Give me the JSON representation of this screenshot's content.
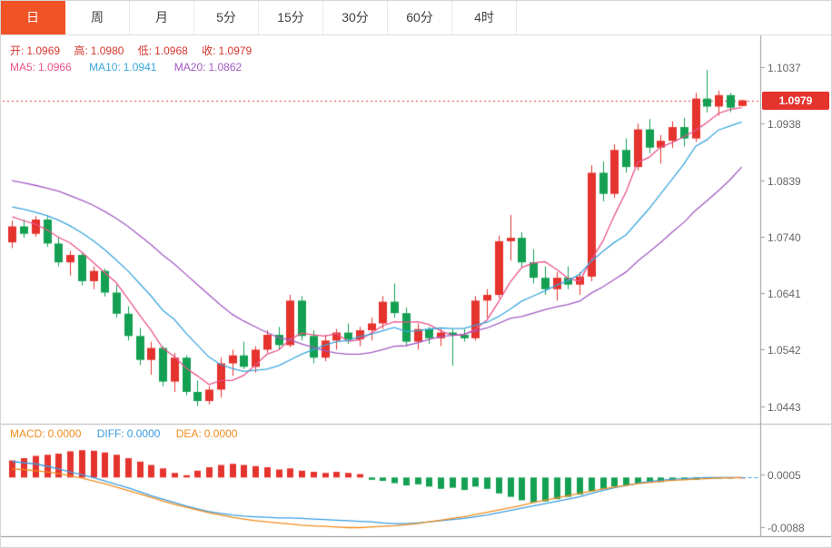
{
  "tabs": [
    {
      "label": "日",
      "active": true
    },
    {
      "label": "周",
      "active": false
    },
    {
      "label": "月",
      "active": false
    },
    {
      "label": "5分",
      "active": false
    },
    {
      "label": "15分",
      "active": false
    },
    {
      "label": "30分",
      "active": false
    },
    {
      "label": "60分",
      "active": false
    },
    {
      "label": "4时",
      "active": false
    }
  ],
  "ohlc_readout": {
    "open_label": "开:",
    "open": "1.0969",
    "high_label": "高:",
    "high": "1.0980",
    "low_label": "低:",
    "low": "1.0968",
    "close_label": "收:",
    "close": "1.0979"
  },
  "ma_readout": {
    "ma5_label": "MA5:",
    "ma5": "1.0966",
    "ma10_label": "MA10:",
    "ma10": "1.0941",
    "ma20_label": "MA20:",
    "ma20": "1.0862"
  },
  "macd_readout": {
    "macd_label": "MACD:",
    "macd": "0.0000",
    "diff_label": "DIFF:",
    "diff": "0.0000",
    "dea_label": "DEA:",
    "dea": "0.0000"
  },
  "colors": {
    "up_red": "#e5332e",
    "down_green": "#14a053",
    "ma5_pink": "#e9538b",
    "ma10_cyan": "#3ba6dd",
    "ma20_purple": "#a35ac2",
    "diff_blue": "#3a9de0",
    "dea_orange": "#f08c1e",
    "active_tab_orange": "#f05326",
    "price_tag_red": "#e5332e",
    "axis_text_gray": "#666666"
  },
  "chart_data": [
    {
      "type": "candlestick",
      "grid": false,
      "ylim": [
        1.0425,
        1.108
      ],
      "y_ticks": [
        "1.1037",
        "1.0938",
        "1.0839",
        "1.0740",
        "1.0641",
        "1.0542",
        "1.0443"
      ],
      "last_price": 1.0979,
      "last_price_label": "1.0979",
      "up_color": "#e5332e",
      "down_color": "#14a053",
      "series": [
        {
          "name": "candles",
          "type": "candlestick",
          "ohlc": [
            [
              1.073,
              1.0768,
              1.072,
              1.0758
            ],
            [
              1.0758,
              1.077,
              1.0738,
              1.0745
            ],
            [
              1.0745,
              1.0776,
              1.074,
              1.077
            ],
            [
              1.077,
              1.0776,
              1.0722,
              1.0728
            ],
            [
              1.0728,
              1.0738,
              1.0688,
              1.0695
            ],
            [
              1.0695,
              1.0715,
              1.0672,
              1.0708
            ],
            [
              1.0708,
              1.0712,
              1.0655,
              1.0662
            ],
            [
              1.0662,
              1.0688,
              1.0648,
              1.068
            ],
            [
              1.068,
              1.0684,
              1.0635,
              1.0642
            ],
            [
              1.0642,
              1.0655,
              1.0598,
              1.0605
            ],
            [
              1.0605,
              1.0618,
              1.0558,
              1.0566
            ],
            [
              1.0566,
              1.058,
              1.0515,
              1.0524
            ],
            [
              1.0524,
              1.0556,
              1.0498,
              1.0545
            ],
            [
              1.0545,
              1.0548,
              1.0478,
              1.0486
            ],
            [
              1.0486,
              1.0536,
              1.0468,
              1.0528
            ],
            [
              1.0528,
              1.0532,
              1.0462,
              1.0468
            ],
            [
              1.0468,
              1.0488,
              1.0443,
              1.0452
            ],
            [
              1.0452,
              1.0478,
              1.0446,
              1.0472
            ],
            [
              1.0472,
              1.0528,
              1.0458,
              1.0518
            ],
            [
              1.0518,
              1.0542,
              1.0496,
              1.0532
            ],
            [
              1.0532,
              1.0556,
              1.0508,
              1.0512
            ],
            [
              1.0512,
              1.0548,
              1.0502,
              1.0542
            ],
            [
              1.0542,
              1.0576,
              1.0536,
              1.0568
            ],
            [
              1.0568,
              1.0582,
              1.0542,
              1.055
            ],
            [
              1.055,
              1.0638,
              1.0546,
              1.0628
            ],
            [
              1.0628,
              1.0636,
              1.0558,
              1.0566
            ],
            [
              1.0566,
              1.0576,
              1.0518,
              1.0528
            ],
            [
              1.0528,
              1.0568,
              1.0522,
              1.0558
            ],
            [
              1.0558,
              1.0578,
              1.0542,
              1.0572
            ],
            [
              1.0572,
              1.0588,
              1.0552,
              1.056
            ],
            [
              1.056,
              1.0582,
              1.0548,
              1.0576
            ],
            [
              1.0576,
              1.0598,
              1.0558,
              1.0588
            ],
            [
              1.0588,
              1.0636,
              1.0578,
              1.0626
            ],
            [
              1.0626,
              1.0658,
              1.0598,
              1.0606
            ],
            [
              1.0606,
              1.0616,
              1.0548,
              1.0556
            ],
            [
              1.0556,
              1.0588,
              1.0542,
              1.0578
            ],
            [
              1.0578,
              1.0582,
              1.0552,
              1.0562
            ],
            [
              1.0562,
              1.0578,
              1.0548,
              1.0572
            ],
            [
              1.0572,
              1.0578,
              1.0514,
              1.0568
            ],
            [
              1.0568,
              1.0578,
              1.0556,
              1.0562
            ],
            [
              1.0562,
              1.0636,
              1.0558,
              1.0628
            ],
            [
              1.0628,
              1.0648,
              1.0598,
              1.0638
            ],
            [
              1.0638,
              1.0742,
              1.0632,
              1.0732
            ],
            [
              1.0732,
              1.0778,
              1.0698,
              1.0738
            ],
            [
              1.0738,
              1.0748,
              1.0686,
              1.0695
            ],
            [
              1.0695,
              1.0718,
              1.0658,
              1.0668
            ],
            [
              1.0668,
              1.0688,
              1.0638,
              1.0648
            ],
            [
              1.0648,
              1.0678,
              1.0628,
              1.0668
            ],
            [
              1.0668,
              1.0688,
              1.0648,
              1.0656
            ],
            [
              1.0656,
              1.0678,
              1.0638,
              1.067
            ],
            [
              1.067,
              1.0865,
              1.0662,
              1.0852
            ],
            [
              1.0852,
              1.0872,
              1.0802,
              1.0815
            ],
            [
              1.0815,
              1.0902,
              1.0808,
              1.0892
            ],
            [
              1.0892,
              1.0912,
              1.0852,
              1.0862
            ],
            [
              1.0862,
              1.0938,
              1.0856,
              1.0928
            ],
            [
              1.0928,
              1.0946,
              1.0886,
              1.0896
            ],
            [
              1.0896,
              1.0918,
              1.0868,
              1.0908
            ],
            [
              1.0908,
              1.0942,
              1.0895,
              1.0932
            ],
            [
              1.0932,
              1.0948,
              1.0898,
              1.0912
            ],
            [
              1.0912,
              1.0992,
              1.0906,
              1.0982
            ],
            [
              1.0982,
              1.1032,
              1.0958,
              1.0968
            ],
            [
              1.0968,
              1.0996,
              1.0952,
              1.0988
            ],
            [
              1.0988,
              1.0992,
              1.0958,
              1.0966
            ],
            [
              1.0969,
              1.098,
              1.0968,
              1.0979
            ]
          ]
        },
        {
          "name": "MA5",
          "type": "line",
          "color": "#e9538b",
          "values": [
            1.0775,
            1.0768,
            1.0762,
            1.0752,
            1.0739,
            1.0729,
            1.0713,
            1.0695,
            1.0677,
            1.0659,
            1.0631,
            1.0603,
            1.0576,
            1.0545,
            1.053,
            1.051,
            1.0496,
            1.0481,
            1.0488,
            1.0488,
            1.0497,
            1.0515,
            1.0534,
            1.0541,
            1.056,
            1.0571,
            1.0568,
            1.0566,
            1.057,
            1.0557,
            1.0559,
            1.0571,
            1.0584,
            1.0591,
            1.059,
            1.0591,
            1.0586,
            1.0575,
            1.0567,
            1.0568,
            1.0578,
            1.0594,
            1.0626,
            1.066,
            1.0686,
            1.0694,
            1.0696,
            1.0683,
            1.0667,
            1.0662,
            1.0699,
            1.0732,
            1.0777,
            1.0818,
            1.087,
            1.0879,
            1.0897,
            1.0905,
            1.0915,
            1.0926,
            1.094,
            1.0956,
            1.0963,
            1.0966
          ]
        },
        {
          "name": "MA10",
          "type": "line",
          "color": "#3ba6dd",
          "values": [
            1.0792,
            1.0788,
            1.0783,
            1.0777,
            1.0769,
            1.0759,
            1.0747,
            1.0733,
            1.0717,
            1.0699,
            1.068,
            1.0658,
            1.0636,
            1.0611,
            1.0595,
            1.0571,
            1.055,
            1.0529,
            1.0516,
            1.0509,
            1.0504,
            1.0506,
            1.0508,
            1.0514,
            1.0524,
            1.0534,
            1.0542,
            1.055,
            1.0556,
            1.0558,
            1.0565,
            1.0569,
            1.0575,
            1.0581,
            1.0574,
            1.0575,
            1.0578,
            1.058,
            1.0579,
            1.0579,
            1.0585,
            1.059,
            1.06,
            1.0613,
            1.0627,
            1.0636,
            1.0645,
            1.0655,
            1.0663,
            1.0674,
            1.0697,
            1.0714,
            1.073,
            1.0743,
            1.0766,
            1.0789,
            1.0815,
            1.0841,
            1.0867,
            1.0898,
            1.091,
            1.0927,
            1.0934,
            1.0941
          ]
        },
        {
          "name": "MA20",
          "type": "line",
          "color": "#a35ac2",
          "values": [
            1.0838,
            1.0834,
            1.083,
            1.0825,
            1.082,
            1.0812,
            1.0804,
            1.0795,
            1.0784,
            1.0772,
            1.0758,
            1.0742,
            1.0726,
            1.0708,
            1.0692,
            1.0674,
            1.0656,
            1.0638,
            1.062,
            1.0604,
            1.0592,
            1.0582,
            1.0572,
            1.0563,
            1.0559,
            1.0552,
            1.0546,
            1.054,
            1.0536,
            1.0534,
            1.0534,
            1.0537,
            1.0542,
            1.0548,
            1.0549,
            1.0554,
            1.056,
            1.0565,
            1.0567,
            1.0569,
            1.0575,
            1.058,
            1.0588,
            1.0597,
            1.06,
            1.0606,
            1.0612,
            1.0617,
            1.0621,
            1.0627,
            1.0641,
            1.0652,
            1.0665,
            1.0678,
            1.0697,
            1.0713,
            1.073,
            1.0748,
            1.0765,
            1.0786,
            1.0803,
            1.0821,
            1.084,
            1.0862
          ]
        }
      ]
    },
    {
      "type": "bar",
      "grid": false,
      "ylim": [
        -0.01,
        0.0085
      ],
      "y_ticks": [
        "0.0005",
        "-0.0088"
      ],
      "up_color": "#e5332e",
      "down_color": "#14a053",
      "series": [
        {
          "name": "MACD",
          "type": "bar",
          "values": [
            0.003,
            0.0034,
            0.0038,
            0.004,
            0.0042,
            0.0046,
            0.0048,
            0.0047,
            0.0044,
            0.004,
            0.0034,
            0.0028,
            0.0022,
            0.0016,
            0.0008,
            0.0004,
            0.0012,
            0.0018,
            0.0022,
            0.0024,
            0.0022,
            0.002,
            0.0018,
            0.0014,
            0.0016,
            0.0012,
            0.001,
            0.0008,
            0.001,
            0.0008,
            0.0006,
            -0.0004,
            -0.0006,
            -0.001,
            -0.0014,
            -0.0012,
            -0.0016,
            -0.002,
            -0.0018,
            -0.0022,
            -0.0016,
            -0.002,
            -0.0028,
            -0.0034,
            -0.004,
            -0.0044,
            -0.0042,
            -0.0038,
            -0.0034,
            -0.003,
            -0.0024,
            -0.002,
            -0.0016,
            -0.0014,
            -0.001,
            -0.0008,
            -0.0008,
            -0.0006,
            -0.0004,
            -0.0004,
            -0.0002,
            -0.0002,
            -0.0001,
            0.0
          ]
        },
        {
          "name": "DIFF",
          "type": "line",
          "color": "#3a9de0",
          "values": [
            0.0028,
            0.0026,
            0.0024,
            0.002,
            0.0015,
            0.001,
            0.0005,
            0.0,
            -0.0006,
            -0.0012,
            -0.0018,
            -0.0025,
            -0.0032,
            -0.0038,
            -0.0044,
            -0.005,
            -0.0055,
            -0.006,
            -0.0063,
            -0.0066,
            -0.0068,
            -0.0069,
            -0.007,
            -0.0071,
            -0.0071,
            -0.0072,
            -0.0073,
            -0.0074,
            -0.0075,
            -0.0076,
            -0.0077,
            -0.0078,
            -0.008,
            -0.0081,
            -0.0081,
            -0.008,
            -0.0078,
            -0.0076,
            -0.0074,
            -0.0072,
            -0.0069,
            -0.0066,
            -0.0062,
            -0.0058,
            -0.0054,
            -0.005,
            -0.0046,
            -0.0042,
            -0.0038,
            -0.0034,
            -0.0028,
            -0.0023,
            -0.0018,
            -0.0014,
            -0.001,
            -0.0007,
            -0.0005,
            -0.0003,
            -0.0002,
            -0.0001,
            0.0,
            0.0,
            0.0,
            0.0
          ]
        },
        {
          "name": "DEA",
          "type": "line",
          "color": "#f08c1e",
          "values": [
            0.0015,
            0.0014,
            0.0012,
            0.001,
            0.0007,
            0.0003,
            -0.0001,
            -0.0006,
            -0.0011,
            -0.0017,
            -0.0023,
            -0.0029,
            -0.0035,
            -0.0041,
            -0.0047,
            -0.0052,
            -0.0057,
            -0.0062,
            -0.0066,
            -0.007,
            -0.0073,
            -0.0076,
            -0.0078,
            -0.008,
            -0.0082,
            -0.0084,
            -0.0085,
            -0.0086,
            -0.0087,
            -0.0088,
            -0.0088,
            -0.0087,
            -0.0086,
            -0.0085,
            -0.0083,
            -0.0081,
            -0.0078,
            -0.0075,
            -0.0072,
            -0.0069,
            -0.0065,
            -0.0061,
            -0.0057,
            -0.0053,
            -0.0049,
            -0.0044,
            -0.004,
            -0.0036,
            -0.0032,
            -0.0028,
            -0.0024,
            -0.002,
            -0.0017,
            -0.0014,
            -0.0011,
            -0.0009,
            -0.0007,
            -0.0005,
            -0.0004,
            -0.0003,
            -0.0002,
            -0.0001,
            -0.0001,
            0.0
          ]
        }
      ]
    }
  ]
}
